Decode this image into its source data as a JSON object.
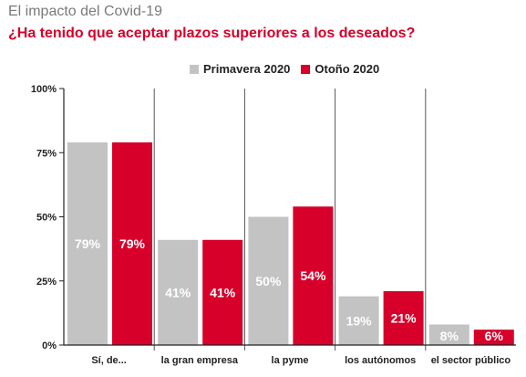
{
  "header": {
    "title": "El impacto del Covid-19",
    "subtitle": "¿Ha tenido que aceptar plazos superiores a los deseados?"
  },
  "legend": [
    {
      "label": "Primavera 2020",
      "color": "#c3c3c3"
    },
    {
      "label": "Otoño 2020",
      "color": "#d6002a"
    }
  ],
  "chart_data": {
    "type": "bar",
    "title": "¿Ha tenido que aceptar plazos superiores a los deseados?",
    "categories": [
      "Sí, de...",
      "la gran empresa",
      "la pyme",
      "los autónomos",
      "el sector público"
    ],
    "series": [
      {
        "name": "Primavera 2020",
        "color": "#c3c3c3",
        "values": [
          79,
          41,
          50,
          19,
          8
        ]
      },
      {
        "name": "Otoño 2020",
        "color": "#d6002a",
        "values": [
          79,
          41,
          54,
          21,
          6
        ]
      }
    ],
    "value_labels": [
      [
        "79%",
        "41%",
        "50%",
        "19%",
        "8%"
      ],
      [
        "79%",
        "41%",
        "54%",
        "21%",
        "6%"
      ]
    ],
    "yticks": [
      0,
      25,
      50,
      75,
      100
    ],
    "ytick_labels": [
      "0%",
      "25%",
      "50%",
      "75%",
      "100%"
    ],
    "ylim": [
      0,
      100
    ],
    "grid": false,
    "legend_position": "top-center"
  }
}
